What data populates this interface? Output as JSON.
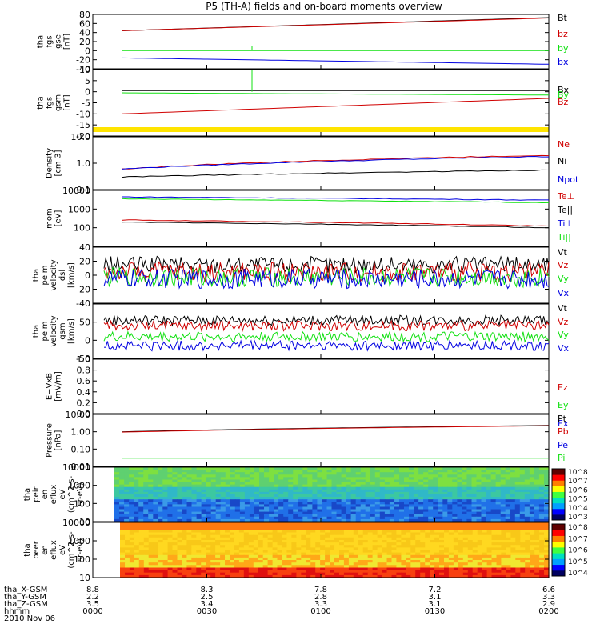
{
  "title": "P5 (TH-A) fields and on-board moments overview",
  "colors": {
    "black": "#000000",
    "red": "#d00000",
    "green": "#10e010",
    "blue": "#0000e0",
    "yellow": "#ffe400"
  },
  "chart_data": [
    {
      "type": "line",
      "panel": "fgs-gse",
      "ylabel": [
        "tha",
        "fgs",
        "gse",
        "[nT]"
      ],
      "ylim": [
        -40,
        80
      ],
      "yticks": [
        "-40",
        "-20",
        "0",
        "20",
        "40",
        "60",
        "80"
      ],
      "yticks_values": [
        -40,
        -20,
        0,
        20,
        40,
        60,
        80
      ],
      "x": [
        0,
        120
      ],
      "series": [
        {
          "name": "Bt",
          "color": "black",
          "values": [
            44,
            73
          ]
        },
        {
          "name": "bz",
          "color": "red",
          "values": [
            44,
            72
          ]
        },
        {
          "name": "by",
          "color": "green",
          "values": [
            0,
            0
          ]
        },
        {
          "name": "bx",
          "color": "blue",
          "values": [
            -16,
            -30
          ]
        }
      ]
    },
    {
      "type": "line",
      "panel": "fgs-gsm",
      "ylabel": [
        "tha",
        "fgs",
        "gsm",
        "[nT]"
      ],
      "ylim": [
        -20,
        10
      ],
      "yticks": [
        "-20",
        "-15",
        "-10",
        "-5",
        "0",
        "5",
        "10"
      ],
      "yticks_values": [
        -20,
        -15,
        -10,
        -5,
        0,
        5,
        10
      ],
      "series": [
        {
          "name": "Bx",
          "color": "black",
          "values": [
            0.5,
            0.5
          ]
        },
        {
          "name": "By",
          "color": "green",
          "values": [
            -0.5,
            -1.5
          ]
        },
        {
          "name": "Bz",
          "color": "red",
          "values": [
            -10,
            -3
          ]
        }
      ]
    },
    {
      "type": "line",
      "panel": "density",
      "ylabel": [
        "Density",
        "[cm-3]"
      ],
      "ylim": [
        0.1,
        10.0
      ],
      "yscale": "log",
      "yticks": [
        "0.1",
        "1.0",
        "10.0"
      ],
      "yticks_values": [
        0.1,
        1.0,
        10.0
      ],
      "series": [
        {
          "name": "Ne",
          "color": "red",
          "values": [
            0.6,
            2.0
          ]
        },
        {
          "name": "Ni",
          "color": "black",
          "values": [
            0.3,
            0.55
          ]
        },
        {
          "name": "Npot",
          "color": "blue",
          "values": [
            0.6,
            1.8
          ]
        }
      ]
    },
    {
      "type": "line",
      "panel": "temperature",
      "ylabel": [
        "mom",
        "[eV]"
      ],
      "ylim": [
        10,
        10000
      ],
      "yscale": "log",
      "yticks": [
        "100",
        "1000",
        "10000"
      ],
      "yticks_values": [
        100,
        1000,
        10000
      ],
      "series": [
        {
          "name": "Te⊥",
          "color": "red",
          "values": [
            260,
            120
          ]
        },
        {
          "name": "Te||",
          "color": "black",
          "values": [
            200,
            100
          ]
        },
        {
          "name": "Ti⊥",
          "color": "blue",
          "values": [
            4500,
            3000
          ]
        },
        {
          "name": "Ti||",
          "color": "green",
          "values": [
            3500,
            2200
          ]
        }
      ]
    },
    {
      "type": "line",
      "panel": "peim-dsl",
      "ylabel": [
        "tha",
        "peim",
        "velocity",
        "dsl",
        "[km/s]"
      ],
      "ylim": [
        -40,
        40
      ],
      "yticks": [
        "-40",
        "-20",
        "0",
        "20",
        "40"
      ],
      "yticks_values": [
        -40,
        -20,
        0,
        20,
        40
      ],
      "series": [
        {
          "name": "Vt",
          "color": "black",
          "values": [
            15,
            15
          ]
        },
        {
          "name": "Vz",
          "color": "red",
          "values": [
            5,
            5
          ]
        },
        {
          "name": "Vy",
          "color": "green",
          "values": [
            -3,
            -3
          ]
        },
        {
          "name": "Vx",
          "color": "blue",
          "values": [
            -5,
            -5
          ]
        }
      ]
    },
    {
      "type": "line",
      "panel": "peim-gsm",
      "ylabel": [
        "tha",
        "peim",
        "velocity",
        "gsm",
        "[km/s]"
      ],
      "ylim": [
        -50,
        100
      ],
      "yticks": [
        "-50",
        "0",
        "50"
      ],
      "yticks_values": [
        -50,
        0,
        50
      ],
      "series": [
        {
          "name": "Vt",
          "color": "black",
          "values": [
            55,
            55
          ]
        },
        {
          "name": "Vz",
          "color": "red",
          "values": [
            40,
            40
          ]
        },
        {
          "name": "Vy",
          "color": "green",
          "values": [
            10,
            10
          ]
        },
        {
          "name": "Vx",
          "color": "blue",
          "values": [
            -15,
            -15
          ]
        }
      ]
    },
    {
      "type": "line",
      "panel": "efield",
      "ylabel": [
        "E−VxB",
        "[mV/m]"
      ],
      "ylim": [
        0,
        1.0
      ],
      "yticks": [
        "0.0",
        "0.2",
        "0.4",
        "0.6",
        "0.8",
        "1.0"
      ],
      "yticks_values": [
        0,
        0.2,
        0.4,
        0.6,
        0.8,
        1.0
      ],
      "series": [
        {
          "name": "Ez",
          "color": "red",
          "values": []
        },
        {
          "name": "Ey",
          "color": "green",
          "values": []
        },
        {
          "name": "Ex",
          "color": "blue",
          "values": []
        }
      ]
    },
    {
      "type": "line",
      "panel": "pressure",
      "ylabel": [
        "Pressure",
        "[nPa]"
      ],
      "ylim": [
        0.01,
        10.0
      ],
      "yscale": "log",
      "yticks": [
        "0.01",
        "0.10",
        "1.00",
        "10.00"
      ],
      "yticks_values": [
        0.01,
        0.1,
        1.0,
        10.0
      ],
      "series": [
        {
          "name": "Pt",
          "color": "black",
          "values": [
            1.0,
            2.3
          ]
        },
        {
          "name": "Pb",
          "color": "red",
          "values": [
            0.95,
            2.2
          ]
        },
        {
          "name": "Pe",
          "color": "blue",
          "values": [
            0.15,
            0.15
          ]
        },
        {
          "name": "Pi",
          "color": "green",
          "values": [
            0.03,
            0.03
          ]
        }
      ]
    },
    {
      "type": "heatmap",
      "panel": "peir-en",
      "ylabel": [
        "tha",
        "peir",
        "en",
        "eflux",
        "eV",
        "(cm^2-s-",
        "sr-eV)"
      ],
      "ylim": [
        10,
        10000
      ],
      "yscale": "log",
      "yticks": [
        "10",
        "100",
        "1000",
        "10000"
      ],
      "yticks_values": [
        10,
        100,
        1000,
        10000
      ],
      "colorbar_ticks": [
        "10^3",
        "10^4",
        "10^5",
        "10^6",
        "10^7",
        "10^8"
      ]
    },
    {
      "type": "heatmap",
      "panel": "peer-en",
      "ylabel": [
        "tha",
        "peer",
        "en",
        "eflux",
        "eV",
        "(cm^2-s-",
        "sr-eV)"
      ],
      "ylim": [
        10,
        10000
      ],
      "yscale": "log",
      "yticks": [
        "10",
        "100",
        "1000",
        "10000"
      ],
      "yticks_values": [
        10,
        100,
        1000,
        10000
      ],
      "colorbar_ticks": [
        "10^4",
        "10^5",
        "10^6",
        "10^7",
        "10^8"
      ]
    }
  ],
  "xaxis": {
    "rows": [
      {
        "label": "tha_X-GSM",
        "values": [
          "8.8",
          "8.3",
          "7.8",
          "7.2",
          "6.6"
        ]
      },
      {
        "label": "tha_Y-GSM",
        "values": [
          "2.2",
          "2.5",
          "2.8",
          "3.1",
          "3.3"
        ]
      },
      {
        "label": "tha_Z-GSM",
        "values": [
          "3.5",
          "3.4",
          "3.3",
          "3.1",
          "2.9"
        ]
      },
      {
        "label": "hhmm",
        "values": [
          "0000",
          "0030",
          "0100",
          "0130",
          "0200"
        ]
      }
    ],
    "date": "2010 Nov 06"
  }
}
